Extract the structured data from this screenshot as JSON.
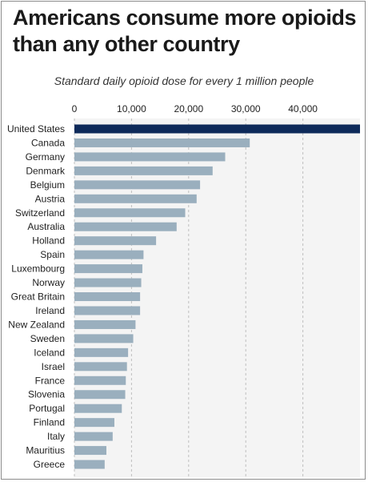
{
  "title": "Americans consume more opioids than any other country",
  "subtitle": "Standard daily opioid dose for every 1 million people",
  "colors": {
    "highlight": "#0e2a5a",
    "bar": "#9aafbe",
    "grid": "#bfbfbf",
    "plot_bg": "#f4f4f4"
  },
  "chart_data": {
    "type": "bar",
    "orientation": "horizontal",
    "title": "Americans consume more opioids than any other country",
    "subtitle": "Standard daily opioid dose for every 1 million people",
    "xlabel": "",
    "ylabel": "",
    "xlim": [
      0,
      50000
    ],
    "xticks": [
      0,
      10000,
      20000,
      30000,
      40000
    ],
    "xtick_labels": [
      "0",
      "10,000",
      "20,000",
      "30,000",
      "40,000"
    ],
    "tick_position": "top",
    "grid": true,
    "highlight_category": "United States",
    "categories": [
      "United States",
      "Canada",
      "Germany",
      "Denmark",
      "Belgium",
      "Austria",
      "Switzerland",
      "Australia",
      "Holland",
      "Spain",
      "Luxembourg",
      "Norway",
      "Great Britain",
      "Ireland",
      "New Zealand",
      "Sweden",
      "Iceland",
      "Israel",
      "France",
      "Slovenia",
      "Portugal",
      "Finland",
      "Italy",
      "Mauritius",
      "Greece"
    ],
    "values": [
      50000,
      30700,
      26400,
      24200,
      22000,
      21400,
      19400,
      17900,
      14300,
      12100,
      11900,
      11700,
      11500,
      11500,
      10700,
      10300,
      9400,
      9200,
      9000,
      8900,
      8300,
      7000,
      6700,
      5600,
      5300
    ]
  }
}
